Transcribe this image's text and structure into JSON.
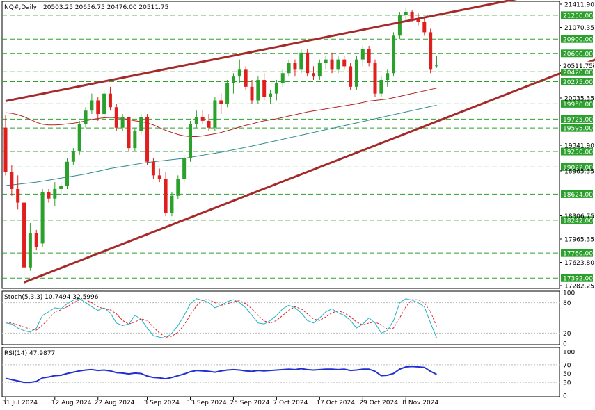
{
  "header": {
    "symbol": "NQ#,Daily",
    "ohlc": "20503.25 20656.75 20476.00 20511.75"
  },
  "colors": {
    "bull": "#2ca02c",
    "bear": "#e01e1e",
    "trendline": "#a52a2a",
    "ma_fast": "#b22222",
    "ma_slow": "#2e8b8b",
    "level_line": "#2ca02c",
    "level_box": "#2ca02c",
    "stoch_main": "#20b2c8",
    "stoch_signal": "#e01e1e",
    "rsi": "#1f2fd0"
  },
  "price_axis": {
    "labels": [
      "21411.90",
      "21070.35",
      "20511.75",
      "20035.35",
      "19341.90",
      "18965.35",
      "18306.75",
      "17965.35",
      "17623.80",
      "17282.25"
    ]
  },
  "levels": [
    "21250.00",
    "20900.00",
    "20690.00",
    "20420.00",
    "20275.00",
    "19950.00",
    "19725.00",
    "19595.00",
    "19250.00",
    "19022.00",
    "18624.00",
    "18242.00",
    "17760.00",
    "17392.00"
  ],
  "current_price": "20511.75",
  "stoch_panel": {
    "title": "Stoch(5,3,3) 10.7494 32.5996",
    "axis": [
      "100",
      "80",
      "20",
      "0"
    ]
  },
  "rsi_panel": {
    "title": "RSI(14) 47.9877",
    "axis": [
      "100",
      "70",
      "50",
      "30",
      "0"
    ]
  },
  "x_axis": {
    "labels": [
      "31 Jul 2024",
      "12 Aug 2024",
      "22 Aug 2024",
      "3 Sep 2024",
      "13 Sep 2024",
      "25 Sep 2024",
      "7 Oct 2024",
      "17 Oct 2024",
      "29 Oct 2024",
      "8 Nov 2024"
    ]
  },
  "chart_data": {
    "type": "candlestick",
    "title": "NQ#,Daily",
    "ylim": [
      17282.25,
      21411.9
    ],
    "dates_start": "31 Jul 2024",
    "candles": [
      [
        19600,
        19780,
        18900,
        18950
      ],
      [
        18950,
        19050,
        18600,
        18700
      ],
      [
        18700,
        18900,
        18400,
        18500
      ],
      [
        18500,
        18520,
        17400,
        17550
      ],
      [
        17550,
        18200,
        17500,
        18050
      ],
      [
        18050,
        18100,
        17800,
        17850
      ],
      [
        17900,
        18700,
        17850,
        18650
      ],
      [
        18650,
        18700,
        18500,
        18560
      ],
      [
        18560,
        18800,
        18450,
        18700
      ],
      [
        18700,
        18800,
        18600,
        18750
      ],
      [
        18750,
        19150,
        18700,
        19100
      ],
      [
        19100,
        19300,
        19050,
        19250
      ],
      [
        19250,
        19700,
        19200,
        19650
      ],
      [
        19650,
        19900,
        19600,
        19850
      ],
      [
        19850,
        20100,
        19800,
        20000
      ],
      [
        20000,
        20050,
        19700,
        19800
      ],
      [
        19800,
        20150,
        19750,
        20100
      ],
      [
        20100,
        20200,
        19850,
        19900
      ],
      [
        19900,
        19950,
        19550,
        19600
      ],
      [
        19600,
        19800,
        19550,
        19750
      ],
      [
        19750,
        19760,
        19250,
        19300
      ],
      [
        19300,
        19600,
        19250,
        19550
      ],
      [
        19550,
        19800,
        19500,
        19750
      ],
      [
        19750,
        19800,
        19050,
        19100
      ],
      [
        19100,
        19150,
        18850,
        18900
      ],
      [
        18900,
        19000,
        18800,
        18850
      ],
      [
        18850,
        18950,
        18300,
        18350
      ],
      [
        18350,
        18650,
        18300,
        18600
      ],
      [
        18600,
        18900,
        18550,
        18850
      ],
      [
        18850,
        19200,
        18800,
        19150
      ],
      [
        19150,
        19700,
        19100,
        19650
      ],
      [
        19650,
        19850,
        19600,
        19750
      ],
      [
        19750,
        19850,
        19650,
        19700
      ],
      [
        19700,
        19800,
        19550,
        19600
      ],
      [
        19600,
        20050,
        19550,
        20000
      ],
      [
        20000,
        20100,
        19800,
        19950
      ],
      [
        19950,
        20300,
        19900,
        20250
      ],
      [
        20250,
        20400,
        20100,
        20350
      ],
      [
        20350,
        20600,
        20250,
        20450
      ],
      [
        20450,
        20500,
        20150,
        20200
      ],
      [
        20200,
        20300,
        19950,
        20000
      ],
      [
        20000,
        20350,
        19950,
        20300
      ],
      [
        20300,
        20400,
        20000,
        20050
      ],
      [
        20050,
        20150,
        19950,
        20100
      ],
      [
        20100,
        20300,
        20000,
        20250
      ],
      [
        20250,
        20450,
        20200,
        20400
      ],
      [
        20400,
        20600,
        20350,
        20550
      ],
      [
        20550,
        20600,
        20350,
        20450
      ],
      [
        20450,
        20750,
        20400,
        20700
      ],
      [
        20700,
        20750,
        20350,
        20400
      ],
      [
        20400,
        20500,
        20300,
        20350
      ],
      [
        20350,
        20600,
        20300,
        20550
      ],
      [
        20550,
        20650,
        20450,
        20600
      ],
      [
        20600,
        20700,
        20400,
        20450
      ],
      [
        20450,
        20650,
        20400,
        20600
      ],
      [
        20600,
        20650,
        20450,
        20500
      ],
      [
        20500,
        20550,
        20150,
        20200
      ],
      [
        20200,
        20650,
        20150,
        20600
      ],
      [
        20600,
        20800,
        20500,
        20750
      ],
      [
        20750,
        20800,
        20500,
        20550
      ],
      [
        20550,
        20600,
        20050,
        20100
      ],
      [
        20100,
        20350,
        20050,
        20300
      ],
      [
        20300,
        20450,
        20200,
        20400
      ],
      [
        20400,
        21000,
        20350,
        20950
      ],
      [
        20950,
        21300,
        20900,
        21250
      ],
      [
        21250,
        21350,
        21150,
        21300
      ],
      [
        21300,
        21320,
        21150,
        21200
      ],
      [
        21200,
        21280,
        21100,
        21150
      ],
      [
        21150,
        21230,
        20950,
        21000
      ],
      [
        21000,
        21050,
        20400,
        20450
      ],
      [
        20503.25,
        20656.75,
        20476,
        20511.75
      ]
    ],
    "ma_fast": [
      19820,
      19810,
      19790,
      19760,
      19720,
      19680,
      19650,
      19640,
      19640,
      19645,
      19655,
      19665,
      19680,
      19700,
      19720,
      19735,
      19745,
      19750,
      19745,
      19735,
      19720,
      19700,
      19690,
      19670,
      19640,
      19600,
      19560,
      19530,
      19500,
      19480,
      19470,
      19470,
      19480,
      19495,
      19510,
      19530,
      19555,
      19580,
      19610,
      19635,
      19655,
      19680,
      19700,
      19715,
      19730,
      19750,
      19770,
      19790,
      19810,
      19830,
      19845,
      19860,
      19875,
      19890,
      19905,
      19920,
      19935,
      19950,
      19970,
      19990,
      20000,
      20010,
      20020,
      20040,
      20060,
      20080,
      20100,
      20120,
      20140,
      20160,
      20180
    ],
    "ma_slow": [
      18750,
      18760,
      18770,
      18780,
      18790,
      18800,
      18815,
      18830,
      18845,
      18860,
      18875,
      18890,
      18905,
      18920,
      18940,
      18960,
      18980,
      19000,
      19015,
      19030,
      19045,
      19060,
      19075,
      19090,
      19100,
      19110,
      19120,
      19130,
      19140,
      19150,
      19165,
      19180,
      19195,
      19210,
      19225,
      19240,
      19258,
      19276,
      19294,
      19312,
      19330,
      19350,
      19370,
      19390,
      19410,
      19430,
      19450,
      19470,
      19490,
      19510,
      19530,
      19550,
      19570,
      19590,
      19610,
      19630,
      19650,
      19670,
      19690,
      19710,
      19730,
      19750,
      19770,
      19790,
      19810,
      19830,
      19850,
      19870,
      19890,
      19910,
      19930
    ],
    "trendlines": [
      {
        "from": [
          0,
          19990
        ],
        "to": [
          92,
          21650
        ]
      },
      {
        "from": [
          3,
          17330
        ],
        "to": [
          110,
          21100
        ]
      }
    ],
    "stoch_main": [
      40,
      38,
      30,
      25,
      22,
      30,
      55,
      62,
      70,
      68,
      78,
      85,
      88,
      80,
      72,
      65,
      70,
      60,
      40,
      35,
      38,
      55,
      48,
      30,
      15,
      12,
      10,
      20,
      35,
      55,
      78,
      88,
      85,
      80,
      70,
      75,
      82,
      86,
      80,
      70,
      55,
      40,
      38,
      45,
      55,
      68,
      75,
      70,
      60,
      45,
      40,
      50,
      62,
      68,
      60,
      55,
      45,
      30,
      38,
      50,
      40,
      20,
      25,
      45,
      80,
      88,
      85,
      80,
      72,
      40,
      10.7494
    ],
    "stoch_signal": [
      42,
      40,
      36,
      32,
      28,
      26,
      36,
      48,
      62,
      66,
      72,
      80,
      86,
      86,
      80,
      72,
      68,
      66,
      58,
      45,
      38,
      42,
      48,
      45,
      32,
      20,
      12,
      14,
      22,
      36,
      56,
      74,
      86,
      86,
      80,
      75,
      78,
      82,
      84,
      78,
      68,
      55,
      44,
      40,
      45,
      55,
      65,
      72,
      68,
      58,
      48,
      45,
      52,
      60,
      64,
      60,
      52,
      42,
      36,
      40,
      42,
      36,
      28,
      30,
      50,
      72,
      86,
      86,
      80,
      62,
      32.5996
    ],
    "rsi": [
      39,
      36,
      33,
      30,
      30,
      32,
      40,
      42,
      45,
      46,
      50,
      53,
      56,
      58,
      59,
      57,
      58,
      56,
      52,
      51,
      49,
      51,
      50,
      44,
      41,
      40,
      38,
      41,
      45,
      49,
      54,
      57,
      56,
      55,
      53,
      56,
      58,
      59,
      58,
      56,
      55,
      57,
      56,
      57,
      58,
      59,
      60,
      59,
      61,
      59,
      58,
      59,
      60,
      60,
      59,
      60,
      57,
      58,
      60,
      60,
      55,
      45,
      46,
      50,
      60,
      65,
      66,
      65,
      64,
      55,
      47.9877
    ]
  }
}
